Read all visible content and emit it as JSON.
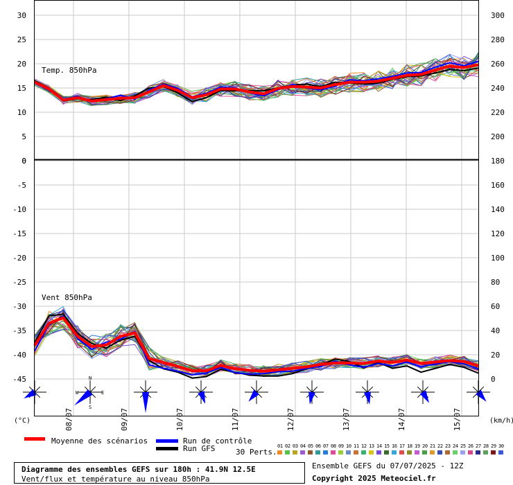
{
  "chart_data": {
    "type": "line",
    "top_panel": {
      "label": "Temp. 850hPa",
      "left_ticks": [
        "30",
        "25",
        "20",
        "15",
        "10",
        "5",
        "0"
      ],
      "right_ticks": [
        "300",
        "280",
        "260",
        "240",
        "220",
        "200"
      ],
      "ylim": [
        0,
        30
      ],
      "mean": [
        16.2,
        14.8,
        12.5,
        13.0,
        12.3,
        12.6,
        12.9,
        13.0,
        14.2,
        15.5,
        14.5,
        13.0,
        13.6,
        14.8,
        14.8,
        14.2,
        13.8,
        14.9,
        15.3,
        15.2,
        15.0,
        15.7,
        16.2,
        16.2,
        16.4,
        17.0,
        17.6,
        17.8,
        18.7,
        19.5,
        19.2,
        19.8
      ],
      "control": [
        16.0,
        14.6,
        12.6,
        13.3,
        12.1,
        12.8,
        13.5,
        12.7,
        14.6,
        15.8,
        14.9,
        13.2,
        13.9,
        15.2,
        15.0,
        14.0,
        13.4,
        14.6,
        15.7,
        15.0,
        14.6,
        15.4,
        16.7,
        16.5,
        16.9,
        17.4,
        18.1,
        18.2,
        19.3,
        20.2,
        19.6,
        20.5
      ],
      "gfs": [
        16.5,
        15.0,
        12.3,
        12.8,
        12.6,
        13.1,
        12.4,
        13.4,
        15.0,
        15.3,
        14.0,
        12.2,
        13.0,
        14.5,
        14.4,
        14.5,
        14.4,
        15.0,
        15.6,
        15.8,
        15.3,
        16.2,
        16.0,
        15.8,
        16.0,
        16.8,
        17.3,
        17.5,
        18.1,
        18.8,
        18.6,
        19.1
      ]
    },
    "bottom_panel": {
      "label": "Vent 850hPa",
      "left_ticks": [
        "0",
        "-5",
        "-10",
        "-15",
        "-20",
        "-25",
        "-30",
        "-35",
        "-40",
        "-45"
      ],
      "right_ticks": [
        "180",
        "160",
        "140",
        "120",
        "100",
        "80",
        "60",
        "40",
        "20",
        "0"
      ],
      "ylim": [
        -46.5,
        0
      ],
      "mean": [
        -38.1,
        -33.5,
        -32.4,
        -36.2,
        -38.3,
        -38.0,
        -36.2,
        -35.5,
        -40.8,
        -41.6,
        -42.4,
        -43.3,
        -43.3,
        -42.2,
        -42.9,
        -43.2,
        -43.4,
        -43.1,
        -42.8,
        -42.5,
        -42.0,
        -41.7,
        -41.7,
        -41.8,
        -41.3,
        -41.6,
        -41.1,
        -41.8,
        -41.5,
        -41.2,
        -41.4,
        -42.3
      ],
      "control": [
        -39.2,
        -33.9,
        -32.0,
        -36.7,
        -38.9,
        -37.4,
        -36.8,
        -35.2,
        -42.1,
        -42.8,
        -43.4,
        -44.1,
        -43.8,
        -42.6,
        -43.7,
        -44.0,
        -43.9,
        -43.5,
        -43.4,
        -42.8,
        -42.4,
        -41.3,
        -42.1,
        -42.6,
        -41.8,
        -42.3,
        -41.5,
        -42.5,
        -41.9,
        -41.4,
        -41.9,
        -42.9
      ],
      "gfs": [
        -37.5,
        -32.0,
        -31.6,
        -35.6,
        -37.7,
        -38.6,
        -37.0,
        -36.2,
        -41.2,
        -42.9,
        -43.6,
        -44.8,
        -44.5,
        -43.0,
        -43.6,
        -44.2,
        -44.4,
        -44.4,
        -43.9,
        -42.9,
        -42.1,
        -40.9,
        -41.4,
        -42.7,
        -41.6,
        -42.8,
        -42.3,
        -43.6,
        -42.8,
        -42.0,
        -42.6,
        -43.8
      ]
    },
    "x_tick_labels": [
      "08/07",
      "09/07",
      "10/07",
      "11/07",
      "12/07",
      "13/07",
      "14/07",
      "15/07"
    ],
    "left_unit": "(°C)",
    "right_unit": "(km/h)",
    "colors": {
      "mean": "#ff0000",
      "control": "#0000ff",
      "gfs": "#000000"
    },
    "perturbation_colors": [
      "#f08c28",
      "#55c24b",
      "#b9a623",
      "#a05cd2",
      "#8e5a2e",
      "#2f9b9b",
      "#2c7bd8",
      "#e04a9a",
      "#9bcc3a",
      "#6a8ac8",
      "#c87236",
      "#37b072",
      "#d8c21c",
      "#7a4bd8",
      "#3a6a2e",
      "#38a6d6",
      "#d85050",
      "#8b8f2a",
      "#c65ad2",
      "#4aa04a",
      "#e09a2c",
      "#3c4ab4",
      "#b06a3a",
      "#6ad06a",
      "#a0a0f0",
      "#d84a8a",
      "#2a2a8c",
      "#5f9f5f",
      "#7a1a1a",
      "#3a5ad8"
    ]
  },
  "legend": {
    "mean": "Moyenne des scénarios",
    "control": "Run de contrôle",
    "gfs": "Run GFS",
    "perts_label": "30 Perts.",
    "pert_numbers": [
      "01",
      "02",
      "03",
      "04",
      "05",
      "06",
      "07",
      "08",
      "09",
      "10",
      "11",
      "12",
      "13",
      "14",
      "15",
      "16",
      "17",
      "18",
      "19",
      "20",
      "21",
      "22",
      "23",
      "24",
      "25",
      "26",
      "27",
      "28",
      "29",
      "30"
    ]
  },
  "footer": {
    "line1": "Diagramme des ensembles GEFS sur 180h : 41.9N 12.5E",
    "line2": "Vent/flux et température au niveau 850hPa",
    "ensemble": "Ensemble GEFS du 07/07/2025 - 12Z",
    "copyright": "Copyright 2025 Meteociel.fr"
  }
}
